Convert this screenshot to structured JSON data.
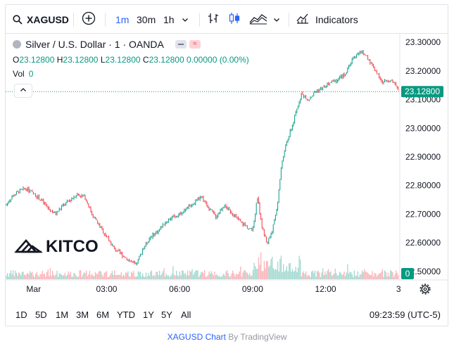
{
  "toolbar": {
    "symbol": "XAGUSD",
    "intervals": [
      "1m",
      "30m",
      "1h"
    ],
    "active_interval": "1m",
    "indicators_label": "Indicators"
  },
  "legend": {
    "title": "Silver / U.S. Dollar · 1 · OANDA",
    "open_label": "O",
    "open": "23.12800",
    "high_label": "H",
    "high": "23.12800",
    "low_label": "L",
    "low": "23.12800",
    "close_label": "C",
    "close": "23.12800",
    "change": "0.00000 (0.00%)",
    "vol_label": "Vol",
    "vol_value": "0"
  },
  "watermark": {
    "text": "KITCO"
  },
  "price_tag": "23.12800",
  "volume_tag": "0",
  "ranges": [
    "1D",
    "5D",
    "1M",
    "3M",
    "6M",
    "YTD",
    "1Y",
    "5Y",
    "All"
  ],
  "clock": "09:23:59 (UTC-5)",
  "footer": {
    "link": "XAGUSD Chart",
    "by": "By TradingView"
  },
  "colors": {
    "up": "#089981",
    "down": "#f23645",
    "accent": "#2962ff"
  },
  "chart_data": {
    "type": "line",
    "y_ticks": [
      "23.30000",
      "23.20000",
      "23.10000",
      "23.00000",
      "22.90000",
      "22.80000",
      "22.70000",
      "22.60000",
      "22.50000"
    ],
    "ylim": [
      22.47,
      23.33
    ],
    "x_ticks": [
      "Mar",
      "03:00",
      "06:00",
      "09:00",
      "12:00",
      "3"
    ],
    "x_tick_hours": [
      0,
      3,
      6,
      9,
      12,
      15
    ],
    "xlim": [
      -1.15,
      15.05
    ],
    "last_price": 23.128,
    "series": [
      {
        "x": [
          -1.15,
          -0.9,
          -0.6,
          -0.3,
          0,
          0.3,
          0.6,
          0.9,
          1.2,
          1.5,
          1.8,
          2.1,
          2.4,
          2.7,
          3.0,
          3.3,
          3.6,
          3.9,
          4.2,
          4.5,
          4.8,
          5.1,
          5.4,
          5.7,
          6.0,
          6.3,
          6.6,
          6.9,
          7.2,
          7.5,
          7.8,
          8.1,
          8.4,
          8.7,
          9.0,
          9.2,
          9.4,
          9.6,
          9.8,
          10.0,
          10.2,
          10.4,
          10.6,
          10.8,
          11.0,
          11.3,
          11.6,
          11.9,
          12.2,
          12.5,
          12.8,
          13.1,
          13.4,
          13.7,
          14.0,
          14.3,
          14.6,
          14.9,
          15.05
        ],
        "values": [
          22.73,
          22.76,
          22.78,
          22.79,
          22.77,
          22.75,
          22.72,
          22.7,
          22.73,
          22.75,
          22.77,
          22.76,
          22.7,
          22.66,
          22.62,
          22.58,
          22.56,
          22.54,
          22.52,
          22.58,
          22.62,
          22.64,
          22.67,
          22.69,
          22.7,
          22.72,
          22.74,
          22.76,
          22.72,
          22.69,
          22.73,
          22.71,
          22.68,
          22.66,
          22.64,
          22.76,
          22.65,
          22.6,
          22.64,
          22.72,
          22.88,
          22.95,
          23.0,
          23.06,
          23.12,
          23.1,
          23.13,
          23.14,
          23.16,
          23.17,
          23.19,
          23.24,
          23.27,
          23.25,
          23.21,
          23.16,
          23.17,
          23.15,
          23.128
        ]
      }
    ]
  }
}
